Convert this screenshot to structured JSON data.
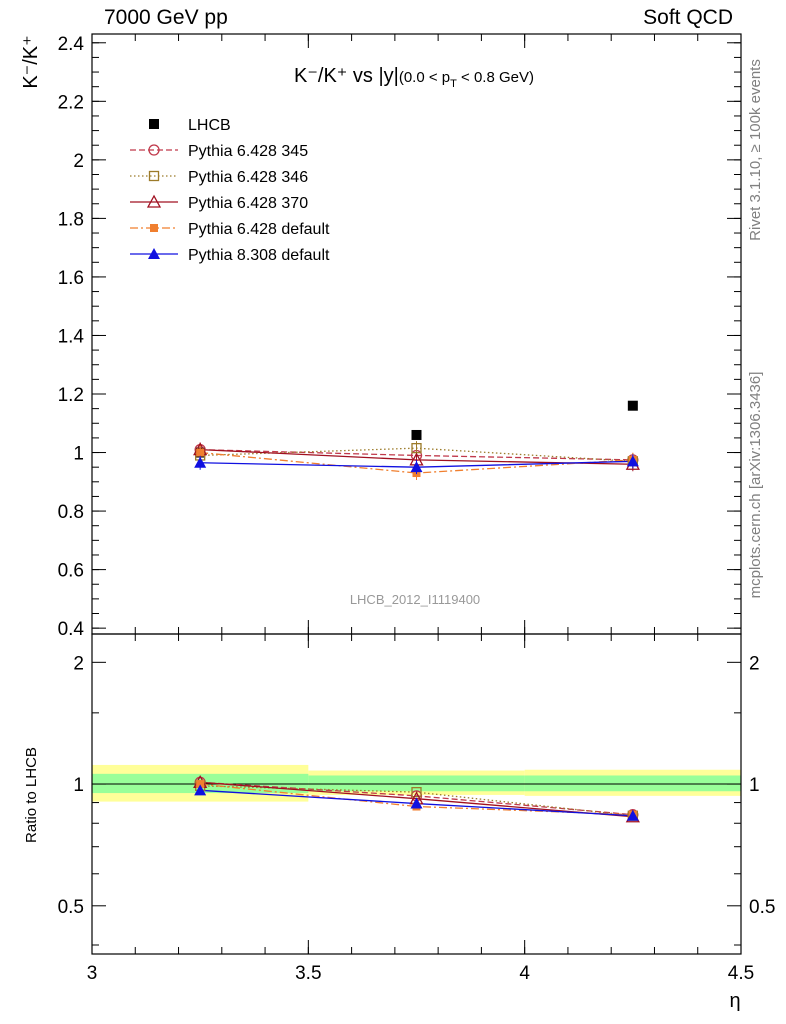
{
  "header": {
    "left": "7000 GeV pp",
    "right": "Soft QCD"
  },
  "side_labels": {
    "rivet": "Rivet 3.1.10, ≥ 100k events",
    "mcplots": "mcplots.cern.ch [arXiv:1306.3436]"
  },
  "chart_data": {
    "type": "scatter",
    "title": "K⁻/K⁺ vs |y|(0.0 < p_T < 0.8 GeV)",
    "title_parts": {
      "main": "K⁻/K⁺ vs |y|",
      "sub_open": "(0.0 < p",
      "sub_T": "T",
      "sub_close": " < 0.8 GeV)"
    },
    "analysis_label": "LHCB_2012_I1119400",
    "xlabel": "η",
    "ylabel_main": "K⁻/K⁺",
    "ylabel_ratio": "Ratio to LHCB",
    "xlim": [
      3.0,
      4.5
    ],
    "ylim_main": [
      0.38,
      2.43
    ],
    "ylim_ratio": [
      0.38,
      2.35
    ],
    "ratio_scale": "log",
    "x_ticks": [
      3,
      3.5,
      4,
      4.5
    ],
    "x_tick_labels": [
      "3",
      "3.5",
      "4",
      "4.5"
    ],
    "y_ticks_main": [
      0.4,
      0.6,
      0.8,
      1,
      1.2,
      1.4,
      1.6,
      1.8,
      2,
      2.2,
      2.4
    ],
    "y_tick_labels_main": [
      "0.4",
      "0.6",
      "0.8",
      "1",
      "1.2",
      "1.4",
      "1.6",
      "1.8",
      "2",
      "2.2",
      "2.4"
    ],
    "y_ticks_ratio": [
      0.5,
      1,
      2
    ],
    "y_tick_labels_ratio": [
      "0.5",
      "1",
      "2"
    ],
    "x": [
      3.25,
      3.75,
      4.25
    ],
    "bin_edges": [
      3.0,
      3.5,
      4.0,
      4.5
    ],
    "data_band_ratio": {
      "green": [
        [
          0.95,
          1.06
        ],
        [
          0.96,
          1.05
        ],
        [
          0.96,
          1.05
        ]
      ],
      "yellow": [
        [
          0.905,
          1.115
        ],
        [
          0.94,
          1.08
        ],
        [
          0.935,
          1.085
        ]
      ]
    },
    "legend_position": "top-left",
    "series": [
      {
        "name": "LHCB",
        "values": [
          1.0,
          1.06,
          1.16
        ],
        "ratio": [
          1.0,
          1.0,
          1.0
        ],
        "color": "#000000",
        "marker": "filled-square",
        "line": "none"
      },
      {
        "name": "Pythia 6.428 345",
        "values": [
          1.01,
          0.99,
          0.975
        ],
        "ratio": [
          1.01,
          0.935,
          0.84
        ],
        "color": "#c0394b",
        "marker": "open-circle",
        "line": "dashed"
      },
      {
        "name": "Pythia 6.428 346",
        "values": [
          0.99,
          1.015,
          0.97
        ],
        "ratio": [
          0.99,
          0.955,
          0.835
        ],
        "color": "#9c7b2a",
        "marker": "open-square",
        "line": "dotted"
      },
      {
        "name": "Pythia 6.428 370",
        "values": [
          1.01,
          0.975,
          0.96
        ],
        "ratio": [
          1.01,
          0.92,
          0.83
        ],
        "color": "#a01020",
        "marker": "open-triangle",
        "line": "solid"
      },
      {
        "name": "Pythia 6.428 default",
        "values": [
          1.0,
          0.93,
          0.975
        ],
        "ratio": [
          1.0,
          0.88,
          0.84
        ],
        "color": "#f07f2f",
        "marker": "filled-square-small",
        "line": "dashdot"
      },
      {
        "name": "Pythia 8.308 default",
        "values": [
          0.965,
          0.95,
          0.97
        ],
        "ratio": [
          0.965,
          0.895,
          0.835
        ],
        "color": "#1010e0",
        "marker": "filled-triangle",
        "line": "solid"
      }
    ]
  }
}
